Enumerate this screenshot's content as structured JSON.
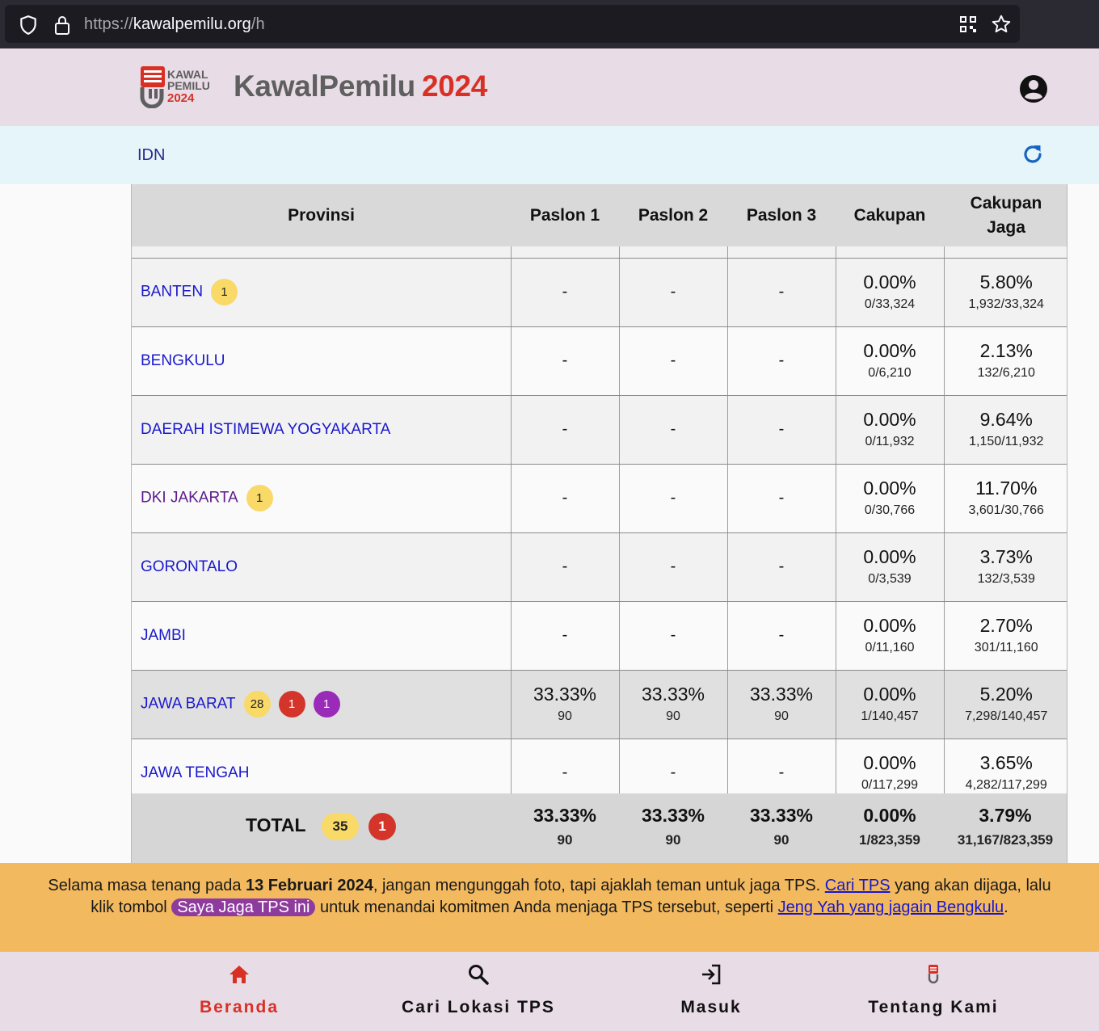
{
  "browser": {
    "url_prefix": "https://",
    "url_host": "kawalpemilu.org",
    "url_path": "/h"
  },
  "header": {
    "brand_name": "KawalPemilu",
    "brand_year": "2024",
    "logo_text_line1": "KAWAL",
    "logo_text_line2": "PEMILU",
    "logo_text_line3": "2024"
  },
  "breadcrumb": {
    "label": "IDN"
  },
  "table": {
    "headers": {
      "provinsi": "Provinsi",
      "paslon1": "Paslon 1",
      "paslon2": "Paslon 2",
      "paslon3": "Paslon 3",
      "cakupan": "Cakupan",
      "cakupan_jaga_1": "Cakupan",
      "cakupan_jaga_2": "Jaga"
    },
    "rows": [
      {
        "name": "BANTEN",
        "badges": [
          {
            "value": "1",
            "color": "yellow"
          }
        ],
        "p1": "-",
        "p2": "-",
        "p3": "-",
        "cakupan_pct": "0.00%",
        "cakupan_sub": "0/33,324",
        "jaga_pct": "5.80%",
        "jaga_sub": "1,932/33,324"
      },
      {
        "name": "BENGKULU",
        "badges": [],
        "p1": "-",
        "p2": "-",
        "p3": "-",
        "cakupan_pct": "0.00%",
        "cakupan_sub": "0/6,210",
        "jaga_pct": "2.13%",
        "jaga_sub": "132/6,210"
      },
      {
        "name": "DAERAH ISTIMEWA YOGYAKARTA",
        "badges": [],
        "p1": "-",
        "p2": "-",
        "p3": "-",
        "cakupan_pct": "0.00%",
        "cakupan_sub": "0/11,932",
        "jaga_pct": "9.64%",
        "jaga_sub": "1,150/11,932"
      },
      {
        "name": "DKI JAKARTA",
        "visited": true,
        "badges": [
          {
            "value": "1",
            "color": "yellow"
          }
        ],
        "p1": "-",
        "p2": "-",
        "p3": "-",
        "cakupan_pct": "0.00%",
        "cakupan_sub": "0/30,766",
        "jaga_pct": "11.70%",
        "jaga_sub": "3,601/30,766"
      },
      {
        "name": "GORONTALO",
        "badges": [],
        "p1": "-",
        "p2": "-",
        "p3": "-",
        "cakupan_pct": "0.00%",
        "cakupan_sub": "0/3,539",
        "jaga_pct": "3.73%",
        "jaga_sub": "132/3,539"
      },
      {
        "name": "JAMBI",
        "badges": [],
        "p1": "-",
        "p2": "-",
        "p3": "-",
        "cakupan_pct": "0.00%",
        "cakupan_sub": "0/11,160",
        "jaga_pct": "2.70%",
        "jaga_sub": "301/11,160"
      },
      {
        "name": "JAWA BARAT",
        "highlight": true,
        "badges": [
          {
            "value": "28",
            "color": "yellow"
          },
          {
            "value": "1",
            "color": "red"
          },
          {
            "value": "1",
            "color": "purple"
          }
        ],
        "p1": "33.33%",
        "p1_sub": "90",
        "p2": "33.33%",
        "p2_sub": "90",
        "p3": "33.33%",
        "p3_sub": "90",
        "cakupan_pct": "0.00%",
        "cakupan_sub": "1/140,457",
        "jaga_pct": "5.20%",
        "jaga_sub": "7,298/140,457"
      },
      {
        "name": "JAWA TENGAH",
        "badges": [],
        "p1": "-",
        "p2": "-",
        "p3": "-",
        "cakupan_pct": "0.00%",
        "cakupan_sub": "0/117,299",
        "jaga_pct": "3.65%",
        "jaga_sub": "4,282/117,299"
      }
    ],
    "total": {
      "label": "TOTAL",
      "badge_yellow": "35",
      "badge_red": "1",
      "p1": "33.33%",
      "p1_sub": "90",
      "p2": "33.33%",
      "p2_sub": "90",
      "p3": "33.33%",
      "p3_sub": "90",
      "cakupan_pct": "0.00%",
      "cakupan_sub": "1/823,359",
      "jaga_pct": "3.79%",
      "jaga_sub": "31,167/823,359"
    }
  },
  "notice": {
    "t1": "Selama masa tenang pada ",
    "date": "13 Februari 2024",
    "t2": ", jangan mengunggah foto, tapi ajaklah teman untuk jaga TPS. ",
    "link1": "Cari TPS",
    "t3": " yang akan dijaga, lalu klik tombol ",
    "pill": "Saya Jaga TPS ini",
    "t4": " untuk menandai komitmen Anda menjaga TPS tersebut, seperti ",
    "link2": "Jeng Yah yang jagain Bengkulu",
    "t5": "."
  },
  "nav": {
    "beranda": "Beranda",
    "cari": "Cari Lokasi TPS",
    "masuk": "Masuk",
    "tentang": "Tentang Kami"
  },
  "colors": {
    "accent_red": "#d93025",
    "header_bg": "#e8dce6",
    "crumb_bg": "#e5f5fa",
    "notice_bg": "#f3b95f",
    "link_blue": "#1a18cc"
  }
}
